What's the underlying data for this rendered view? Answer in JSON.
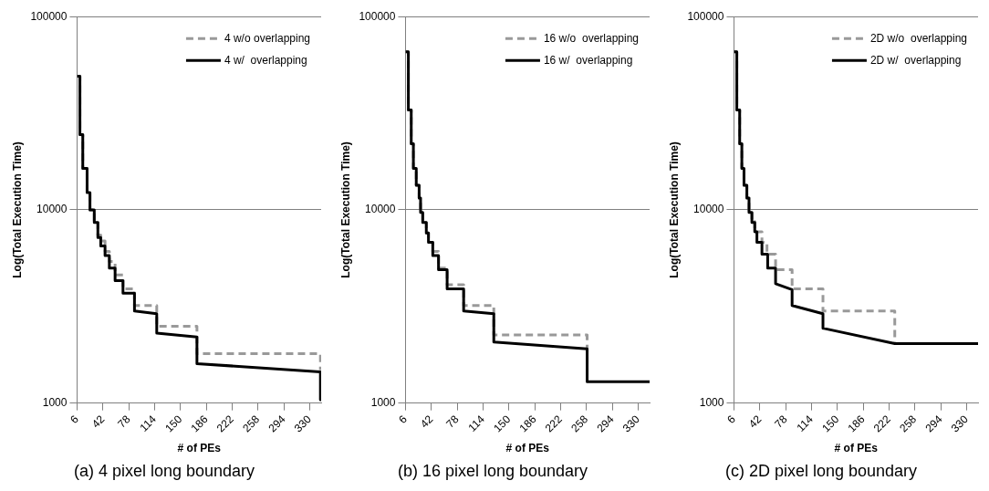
{
  "chart_data": [
    {
      "type": "line",
      "title": "(a) 4 pixel long boundary",
      "xlabel": "# of PEs",
      "ylabel": "Log(Total Execution Time)",
      "log": true,
      "xlim": [
        6,
        346
      ],
      "xticks": [
        6,
        42,
        78,
        114,
        150,
        186,
        222,
        258,
        294,
        330
      ],
      "ylim": [
        1000,
        100000
      ],
      "yticks": [
        1000,
        10000,
        100000
      ],
      "grid": "y",
      "legend": "top right",
      "marker": "none",
      "series": [
        {
          "name": "4 w/o overlapping",
          "color": "#999999",
          "line_style": "dashed",
          "x": [
            6,
            10,
            10,
            14,
            14,
            20,
            20,
            24,
            24,
            30,
            30,
            35,
            35,
            39,
            39,
            45,
            45,
            51,
            51,
            59,
            59,
            70,
            70,
            86,
            86,
            117,
            117,
            173,
            173,
            345,
            345
          ],
          "values": [
            49100,
            49100,
            24500,
            24500,
            16400,
            16400,
            12300,
            12300,
            10000,
            10000,
            8800,
            8800,
            7400,
            7400,
            6900,
            6900,
            6100,
            6100,
            5400,
            5400,
            4600,
            4600,
            3900,
            3900,
            3200,
            3200,
            2500,
            2500,
            1800,
            1800,
            1480
          ]
        },
        {
          "name": "4 w/  overlapping",
          "color": "#000000",
          "line_style": "solid",
          "x": [
            6,
            10,
            10,
            14,
            14,
            20,
            20,
            24,
            24,
            30,
            30,
            35,
            35,
            39,
            39,
            45,
            45,
            51,
            51,
            59,
            59,
            70,
            70,
            86,
            86,
            117,
            117,
            173,
            173,
            345,
            345
          ],
          "values": [
            49100,
            49100,
            24500,
            24500,
            16400,
            16400,
            12300,
            12300,
            10000,
            10000,
            8600,
            8600,
            7200,
            7200,
            6500,
            6500,
            5800,
            5800,
            5000,
            5000,
            4300,
            4300,
            3700,
            3700,
            3000,
            2900,
            2300,
            2200,
            1600,
            1450,
            1040
          ]
        }
      ]
    },
    {
      "type": "line",
      "title": "(b) 16 pixel long boundary",
      "xlabel": "# of PEs",
      "ylabel": "Log(Total Execution Time)",
      "log": true,
      "xlim": [
        6,
        346
      ],
      "xticks": [
        6,
        42,
        78,
        114,
        150,
        186,
        222,
        258,
        294,
        330
      ],
      "ylim": [
        1000,
        100000
      ],
      "yticks": [
        1000,
        10000,
        100000
      ],
      "grid": "y",
      "legend": "top right",
      "marker": "none",
      "series": [
        {
          "name": "16 w/o  overlapping",
          "color": "#999999",
          "line_style": "dashed",
          "x": [
            6,
            10,
            10,
            14,
            14,
            17,
            17,
            21,
            21,
            25,
            25,
            27,
            27,
            30,
            30,
            35,
            35,
            38,
            38,
            44,
            44,
            52,
            52,
            64,
            64,
            87,
            87,
            129,
            129,
            259,
            259
          ],
          "values": [
            65700,
            65700,
            32900,
            32900,
            22000,
            22000,
            16400,
            16400,
            13400,
            13400,
            11500,
            11500,
            9700,
            9700,
            8600,
            8600,
            7600,
            7600,
            6800,
            6800,
            6100,
            6100,
            5000,
            5000,
            4100,
            4100,
            3200,
            3200,
            2250,
            2250,
            1290
          ]
        },
        {
          "name": "16 w/  overlapping",
          "color": "#000000",
          "line_style": "solid",
          "x": [
            6,
            10,
            10,
            14,
            14,
            17,
            17,
            21,
            21,
            25,
            25,
            27,
            27,
            30,
            30,
            35,
            35,
            38,
            38,
            44,
            44,
            52,
            52,
            64,
            64,
            87,
            87,
            129,
            129,
            259,
            259,
            346
          ],
          "values": [
            65700,
            65700,
            32900,
            32900,
            22000,
            22000,
            16400,
            16400,
            13400,
            13400,
            11500,
            11500,
            9700,
            9700,
            8600,
            8600,
            7600,
            7600,
            6800,
            6800,
            5800,
            5800,
            4900,
            4900,
            3900,
            3900,
            3000,
            2900,
            2070,
            1910,
            1290,
            1290
          ]
        }
      ]
    },
    {
      "type": "line",
      "title": "(c) 2D pixel long boundary",
      "xlabel": "# of PEs",
      "ylabel": "Log(Total Execution Time)",
      "log": true,
      "xlim": [
        6,
        346
      ],
      "xticks": [
        6,
        42,
        78,
        114,
        150,
        186,
        222,
        258,
        294,
        330
      ],
      "ylim": [
        1000,
        100000
      ],
      "yticks": [
        1000,
        10000,
        100000
      ],
      "grid": "y",
      "legend": "top right",
      "marker": "none",
      "series": [
        {
          "name": "2D w/o  overlapping",
          "color": "#999999",
          "line_style": "dashed",
          "x": [
            6,
            10,
            10,
            14,
            14,
            17,
            17,
            20,
            20,
            24,
            24,
            27,
            27,
            31,
            31,
            35,
            35,
            45,
            45,
            52,
            52,
            64,
            64,
            87,
            87,
            130,
            130,
            230,
            230
          ],
          "values": [
            65700,
            65700,
            32900,
            32900,
            22000,
            22000,
            16400,
            16400,
            13400,
            13400,
            11500,
            11500,
            10000,
            10000,
            8700,
            8700,
            7700,
            7700,
            6800,
            6800,
            5900,
            5900,
            4900,
            4900,
            3900,
            3900,
            3000,
            3000,
            2030
          ]
        },
        {
          "name": "2D w/  overlapping",
          "color": "#000000",
          "line_style": "solid",
          "x": [
            6,
            10,
            10,
            14,
            14,
            17,
            17,
            20,
            20,
            24,
            24,
            27,
            27,
            31,
            31,
            35,
            35,
            38,
            38,
            45,
            45,
            53,
            53,
            64,
            64,
            87,
            87,
            130,
            130,
            230,
            346
          ],
          "values": [
            65700,
            65700,
            32900,
            32900,
            22000,
            22000,
            16400,
            16400,
            13400,
            13400,
            11500,
            11500,
            9700,
            9700,
            8600,
            8600,
            7700,
            7700,
            6800,
            6800,
            5900,
            5900,
            5000,
            5000,
            4150,
            3860,
            3200,
            2900,
            2440,
            2030,
            2030
          ]
        }
      ]
    }
  ]
}
